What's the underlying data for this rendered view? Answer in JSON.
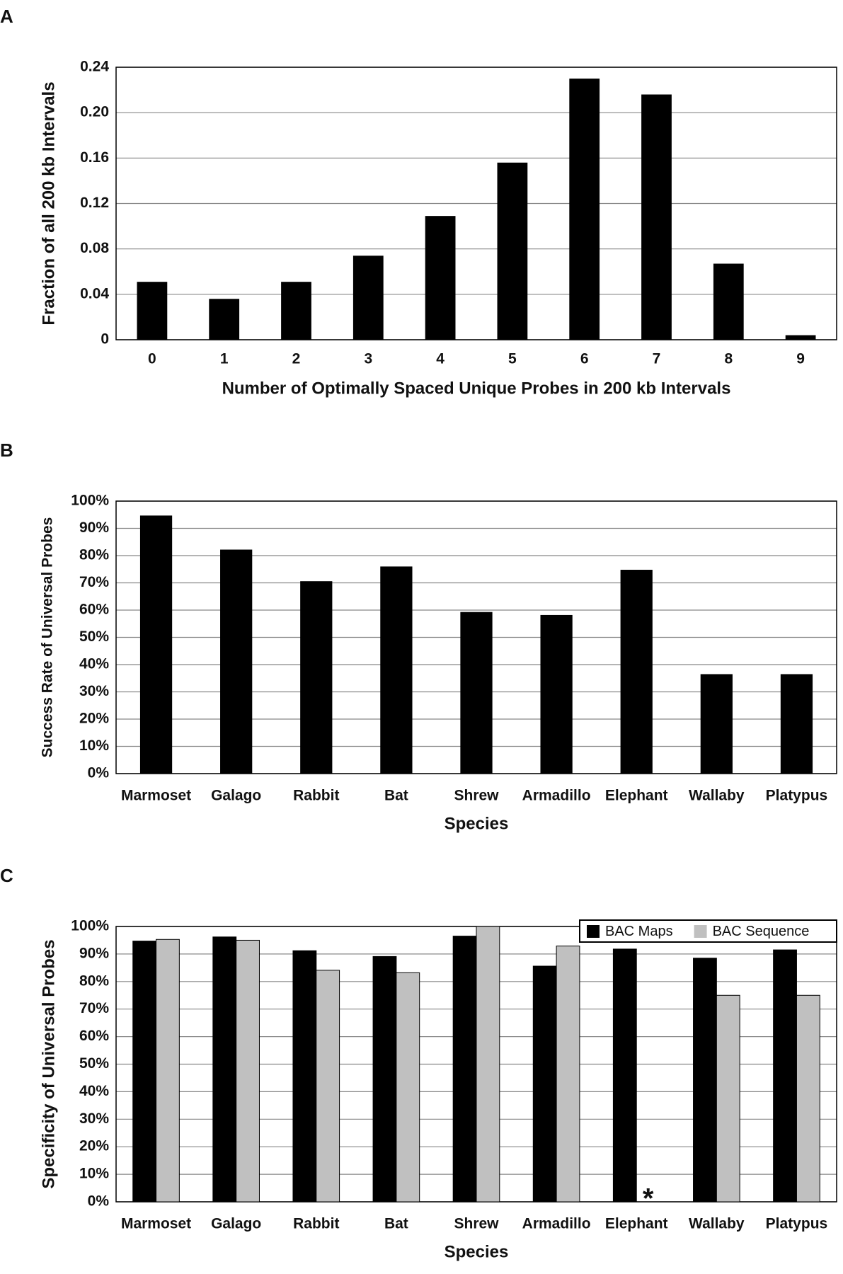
{
  "chart_data": [
    {
      "type": "bar",
      "panel": "A",
      "xlabel": "Number of Optimally Spaced Unique Probes in 200 kb Intervals",
      "ylabel": "Fraction of all 200 kb Intervals",
      "categories": [
        "0",
        "1",
        "2",
        "3",
        "4",
        "5",
        "6",
        "7",
        "8",
        "9"
      ],
      "values": [
        0.051,
        0.036,
        0.051,
        0.074,
        0.109,
        0.156,
        0.23,
        0.216,
        0.067,
        0.004
      ],
      "color": "#000000",
      "ylim": [
        0,
        0.24
      ],
      "yticks": [
        0,
        0.04,
        0.08,
        0.12,
        0.16,
        {
          "value": 0.2,
          "label": "0.20"
        },
        0.24
      ],
      "grid": true
    },
    {
      "type": "bar",
      "panel": "B",
      "xlabel": "Species",
      "ylabel": "Success Rate of Universal Probes",
      "categories": [
        "Marmoset",
        "Galago",
        "Rabbit",
        "Bat",
        "Shrew",
        "Armadillo",
        "Elephant",
        "Wallaby",
        "Platypus"
      ],
      "values": [
        94.7,
        82.2,
        70.6,
        76,
        59.3,
        58.2,
        74.8,
        36.5,
        36.5
      ],
      "color": "#000000",
      "ylim": [
        0,
        100
      ],
      "yticks": [
        {
          "value": 0,
          "label": "0%"
        },
        {
          "value": 10,
          "label": "10%"
        },
        {
          "value": 20,
          "label": "20%"
        },
        {
          "value": 30,
          "label": "30%"
        },
        {
          "value": 40,
          "label": "40%"
        },
        {
          "value": 50,
          "label": "50%"
        },
        {
          "value": 60,
          "label": "60%"
        },
        {
          "value": 70,
          "label": "70%"
        },
        {
          "value": 80,
          "label": "80%"
        },
        {
          "value": 90,
          "label": "90%"
        },
        {
          "value": 100,
          "label": "100%"
        }
      ],
      "grid": true
    },
    {
      "type": "bar",
      "panel": "C",
      "xlabel": "Species",
      "ylabel": "Specificity of Universal Probes",
      "categories": [
        "Marmoset",
        "Galago",
        "Rabbit",
        "Bat",
        "Shrew",
        "Armadillo",
        "Elephant",
        "Wallaby",
        "Platypus"
      ],
      "series": [
        {
          "name": "BAC Maps",
          "color": "#000000",
          "values": [
            94.7,
            96.2,
            91.2,
            89.1,
            96.5,
            85.6,
            91.8,
            88.5,
            91.5
          ]
        },
        {
          "name": "BAC Sequence",
          "color": "#c0c0c0",
          "values": [
            95.3,
            95.0,
            84.1,
            83.2,
            100,
            92.9,
            null,
            75,
            75
          ]
        }
      ],
      "missing_marker": "*",
      "ylim": [
        0,
        100
      ],
      "yticks": [
        {
          "value": 0,
          "label": "0%"
        },
        {
          "value": 10,
          "label": "10%"
        },
        {
          "value": 20,
          "label": "20%"
        },
        {
          "value": 30,
          "label": "30%"
        },
        {
          "value": 40,
          "label": "40%"
        },
        {
          "value": 50,
          "label": "50%"
        },
        {
          "value": 60,
          "label": "60%"
        },
        {
          "value": 70,
          "label": "70%"
        },
        {
          "value": 80,
          "label": "80%"
        },
        {
          "value": 90,
          "label": "90%"
        },
        {
          "value": 100,
          "label": "100%"
        }
      ],
      "grid": true,
      "legend": "upper right"
    }
  ]
}
